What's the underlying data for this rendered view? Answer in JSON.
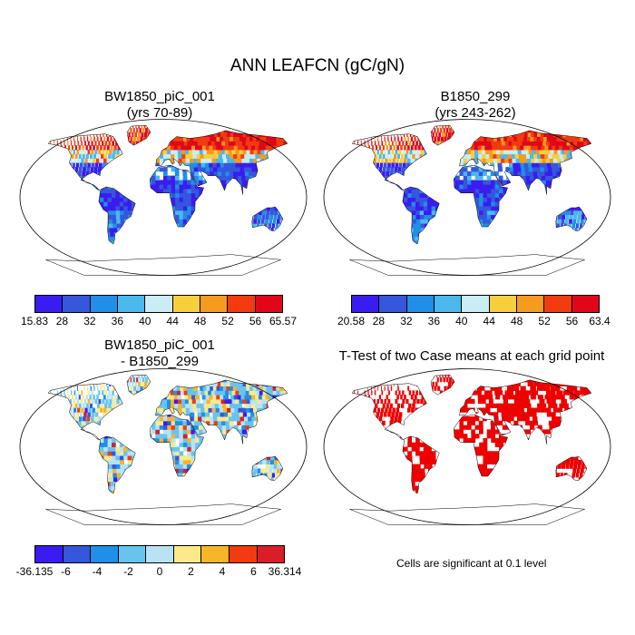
{
  "figure": {
    "title": "ANN LEAFCN (gC/gN)",
    "note": "Cells are significant at 0.1 level"
  },
  "panels": [
    {
      "id": "tl",
      "title_line1": "BW1850_piC_001",
      "title_line2": "(yrs 70-89)",
      "kind": "field"
    },
    {
      "id": "tr",
      "title_line1": "B1850_299",
      "title_line2": "(yrs 243-262)",
      "kind": "field"
    },
    {
      "id": "bl",
      "title_line1": "BW1850_piC_001",
      "title_line2": "- B1850_299",
      "kind": "diff"
    },
    {
      "id": "br",
      "title_line1": "T-Test of two Case means at each grid point",
      "title_line2": "",
      "kind": "ttest"
    }
  ],
  "colorbars": [
    {
      "id": "cb1",
      "labels": [
        "15.83",
        "28",
        "32",
        "36",
        "40",
        "44",
        "48",
        "52",
        "56",
        "65.57"
      ],
      "colors": [
        "#3b1cf0",
        "#3557db",
        "#1f8fe8",
        "#4bb8ee",
        "#c9ecf5",
        "#f7cf3e",
        "#f59b1e",
        "#f23b10",
        "#e0071a"
      ]
    },
    {
      "id": "cb2",
      "labels": [
        "20.58",
        "28",
        "32",
        "36",
        "40",
        "44",
        "48",
        "52",
        "56",
        "63.4"
      ],
      "colors": [
        "#3b1cf0",
        "#3557db",
        "#1f8fe8",
        "#4bb8ee",
        "#c9ecf5",
        "#f7cf3e",
        "#f59b1e",
        "#f23b10",
        "#e0071a"
      ]
    },
    {
      "id": "cb3",
      "labels": [
        "-36.135",
        "-6",
        "-4",
        "-2",
        "0",
        "2",
        "4",
        "6",
        "36.314"
      ],
      "colors": [
        "#3b1cf0",
        "#3557db",
        "#1f8fe8",
        "#68c4ef",
        "#b7e3f4",
        "#fbe98c",
        "#f7b52a",
        "#f23b10",
        "#d91e28"
      ]
    }
  ],
  "chart_data": [
    {
      "type": "heatmap",
      "title": "BW1850_piC_001 (yrs 70-89)",
      "variable": "ANN LEAFCN (gC/gN)",
      "colorbar_range": [
        15.83,
        65.57
      ],
      "levels": [
        28,
        32,
        36,
        40,
        44,
        48,
        52,
        56
      ]
    },
    {
      "type": "heatmap",
      "title": "B1850_299 (yrs 243-262)",
      "variable": "ANN LEAFCN (gC/gN)",
      "colorbar_range": [
        20.58,
        63.4
      ],
      "levels": [
        28,
        32,
        36,
        40,
        44,
        48,
        52,
        56
      ]
    },
    {
      "type": "heatmap",
      "title": "BW1850_piC_001 - B1850_299",
      "variable": "ANN LEAFCN (gC/gN)",
      "colorbar_range": [
        -36.135,
        36.314
      ],
      "levels": [
        -6,
        -4,
        -2,
        0,
        2,
        4,
        6
      ]
    },
    {
      "type": "heatmap",
      "title": "T-Test of two Case means at each grid point",
      "significance_level": 0.1
    }
  ]
}
